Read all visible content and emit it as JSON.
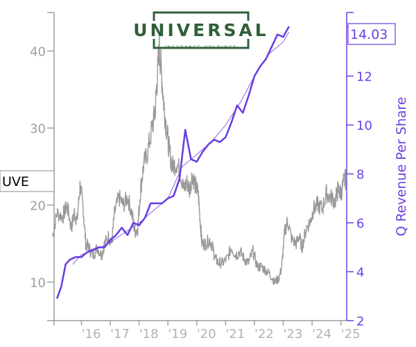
{
  "logo": {
    "name": "UNIVERSAL",
    "subtitle": "INSURANCE HOLDINGS"
  },
  "ticker": "UVE",
  "last_value_label": "14.03",
  "colors": {
    "price": "#999999",
    "revenue": "#6b3fe0",
    "trend": "#6b3fe0",
    "left_axis": "#9e9e9e"
  },
  "chart_data": {
    "type": "line",
    "y_left": {
      "ticks": [
        10,
        20,
        30,
        40
      ],
      "range": [
        5,
        45
      ]
    },
    "y_right": {
      "label": "Q Revenue Per Share",
      "ticks": [
        2,
        4,
        6,
        8,
        10,
        12,
        14
      ],
      "range": [
        2,
        14.6
      ]
    },
    "x": {
      "tick_labels": [
        "'16",
        "'17",
        "'18",
        "'19",
        "'20",
        "'21",
        "'22",
        "'23",
        "'24",
        "'25"
      ],
      "tick_positions": [
        2016,
        2017,
        2018,
        2019,
        2020,
        2021,
        2022,
        2023,
        2024,
        2025
      ],
      "range": [
        2015.05,
        2025.2
      ]
    },
    "series": [
      {
        "axis": "left",
        "points": [
          [
            2015.0,
            16
          ],
          [
            2015.15,
            19
          ],
          [
            2015.35,
            18.5
          ],
          [
            2015.5,
            20
          ],
          [
            2015.65,
            17
          ],
          [
            2015.75,
            19
          ],
          [
            2015.85,
            18
          ],
          [
            2015.95,
            22.5
          ],
          [
            2016.05,
            20
          ],
          [
            2016.15,
            15
          ],
          [
            2016.25,
            14.5
          ],
          [
            2016.4,
            13.5
          ],
          [
            2016.55,
            14.5
          ],
          [
            2016.7,
            13.5
          ],
          [
            2016.8,
            15
          ],
          [
            2016.95,
            16
          ],
          [
            2017.05,
            15
          ],
          [
            2017.15,
            19
          ],
          [
            2017.3,
            21
          ],
          [
            2017.45,
            20
          ],
          [
            2017.6,
            21
          ],
          [
            2017.75,
            19
          ],
          [
            2017.85,
            16.5
          ],
          [
            2017.95,
            17
          ],
          [
            2018.05,
            22
          ],
          [
            2018.15,
            25
          ],
          [
            2018.3,
            27
          ],
          [
            2018.45,
            30
          ],
          [
            2018.55,
            32
          ],
          [
            2018.62,
            36
          ],
          [
            2018.7,
            40.5
          ],
          [
            2018.78,
            37
          ],
          [
            2018.86,
            33
          ],
          [
            2018.95,
            30
          ],
          [
            2019.05,
            27
          ],
          [
            2019.15,
            25
          ],
          [
            2019.3,
            25.5
          ],
          [
            2019.45,
            24
          ],
          [
            2019.55,
            22
          ],
          [
            2019.65,
            23
          ],
          [
            2019.75,
            22
          ],
          [
            2019.85,
            24
          ],
          [
            2019.95,
            22.5
          ],
          [
            2020.05,
            21.5
          ],
          [
            2020.12,
            18
          ],
          [
            2020.18,
            15
          ],
          [
            2020.3,
            15
          ],
          [
            2020.45,
            15.5
          ],
          [
            2020.55,
            14.5
          ],
          [
            2020.65,
            13
          ],
          [
            2020.75,
            12.5
          ],
          [
            2020.9,
            12.5
          ],
          [
            2021.05,
            13
          ],
          [
            2021.2,
            14.5
          ],
          [
            2021.35,
            13.5
          ],
          [
            2021.5,
            14
          ],
          [
            2021.65,
            13
          ],
          [
            2021.8,
            12.5
          ],
          [
            2021.95,
            14
          ],
          [
            2022.1,
            12
          ],
          [
            2022.25,
            12
          ],
          [
            2022.4,
            11.5
          ],
          [
            2022.55,
            11
          ],
          [
            2022.7,
            10
          ],
          [
            2022.85,
            10.5
          ],
          [
            2022.95,
            12
          ],
          [
            2023.05,
            16.5
          ],
          [
            2023.15,
            18
          ],
          [
            2023.3,
            15.5
          ],
          [
            2023.45,
            15
          ],
          [
            2023.55,
            16
          ],
          [
            2023.65,
            14.5
          ],
          [
            2023.8,
            17
          ],
          [
            2023.95,
            18
          ],
          [
            2024.05,
            19.5
          ],
          [
            2024.2,
            20
          ],
          [
            2024.35,
            19.5
          ],
          [
            2024.5,
            21.5
          ],
          [
            2024.65,
            21
          ],
          [
            2024.8,
            20.5
          ],
          [
            2024.9,
            22
          ],
          [
            2025.0,
            21.5
          ],
          [
            2025.1,
            23
          ],
          [
            2025.18,
            23.5
          ]
        ]
      },
      {
        "axis": "right",
        "points": [
          [
            2015.15,
            2.9
          ],
          [
            2015.3,
            3.4
          ],
          [
            2015.45,
            4.3
          ],
          [
            2015.6,
            4.5
          ],
          [
            2015.8,
            4.6
          ],
          [
            2016.0,
            4.6
          ],
          [
            2016.2,
            4.8
          ],
          [
            2016.4,
            4.9
          ],
          [
            2016.6,
            5.0
          ],
          [
            2016.8,
            5.0
          ],
          [
            2017.0,
            5.3
          ],
          [
            2017.2,
            5.5
          ],
          [
            2017.4,
            5.8
          ],
          [
            2017.6,
            5.5
          ],
          [
            2017.8,
            6.0
          ],
          [
            2018.0,
            5.9
          ],
          [
            2018.2,
            6.2
          ],
          [
            2018.4,
            6.8
          ],
          [
            2018.6,
            6.8
          ],
          [
            2018.8,
            6.8
          ],
          [
            2019.0,
            7.0
          ],
          [
            2019.2,
            7.1
          ],
          [
            2019.4,
            7.8
          ],
          [
            2019.6,
            9.8
          ],
          [
            2019.8,
            8.6
          ],
          [
            2020.0,
            8.5
          ],
          [
            2020.2,
            8.9
          ],
          [
            2020.4,
            9.2
          ],
          [
            2020.6,
            9.4
          ],
          [
            2020.8,
            9.3
          ],
          [
            2021.0,
            9.5
          ],
          [
            2021.2,
            10.1
          ],
          [
            2021.4,
            10.8
          ],
          [
            2021.6,
            10.5
          ],
          [
            2021.8,
            11.2
          ],
          [
            2022.0,
            12.0
          ],
          [
            2022.2,
            12.4
          ],
          [
            2022.4,
            12.7
          ],
          [
            2022.6,
            13.2
          ],
          [
            2022.8,
            13.7
          ],
          [
            2023.0,
            13.6
          ],
          [
            2023.2,
            14.03
          ]
        ]
      },
      {
        "axis": "right",
        "points": [
          [
            2015.7,
            4.3
          ],
          [
            2016.0,
            4.7
          ],
          [
            2016.5,
            4.9
          ],
          [
            2017.0,
            5.2
          ],
          [
            2017.5,
            5.6
          ],
          [
            2018.0,
            6.0
          ],
          [
            2018.5,
            6.5
          ],
          [
            2019.0,
            7.0
          ],
          [
            2019.5,
            8.3
          ],
          [
            2020.0,
            8.8
          ],
          [
            2020.5,
            9.3
          ],
          [
            2021.0,
            10.0
          ],
          [
            2021.5,
            10.9
          ],
          [
            2022.0,
            12.0
          ],
          [
            2022.5,
            12.9
          ],
          [
            2023.0,
            13.4
          ],
          [
            2023.2,
            13.8
          ]
        ]
      }
    ]
  }
}
